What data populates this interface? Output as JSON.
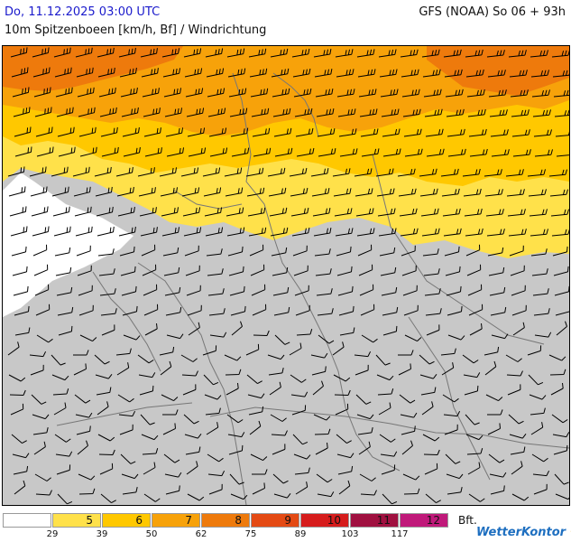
{
  "header": {
    "datetime": "Do, 11.12.2025 03:00 UTC",
    "model_run": "GFS (NOAA) So 06 + 93h",
    "parameter": "10m Spitzenboeen [km/h, Bf] / Windrichtung"
  },
  "legend": {
    "unit": "Bft.",
    "classes": [
      {
        "bf": "",
        "color": "#ffffff"
      },
      {
        "bf": "5",
        "color": "#ffe14a"
      },
      {
        "bf": "6",
        "color": "#ffc800"
      },
      {
        "bf": "7",
        "color": "#f7a20a"
      },
      {
        "bf": "8",
        "color": "#ee7a0c"
      },
      {
        "bf": "9",
        "color": "#e44a14"
      },
      {
        "bf": "10",
        "color": "#d61c1c"
      },
      {
        "bf": "11",
        "color": "#a01040"
      },
      {
        "bf": "12",
        "color": "#c0197a"
      }
    ],
    "thresholds": [
      "29",
      "39",
      "50",
      "62",
      "75",
      "89",
      "103",
      "117"
    ]
  },
  "map": {
    "land_below_threshold_color": "#c8c8c8",
    "border_color": "#777777",
    "barb_color": "#000000"
  },
  "logo": {
    "text": "WetterKontor"
  }
}
